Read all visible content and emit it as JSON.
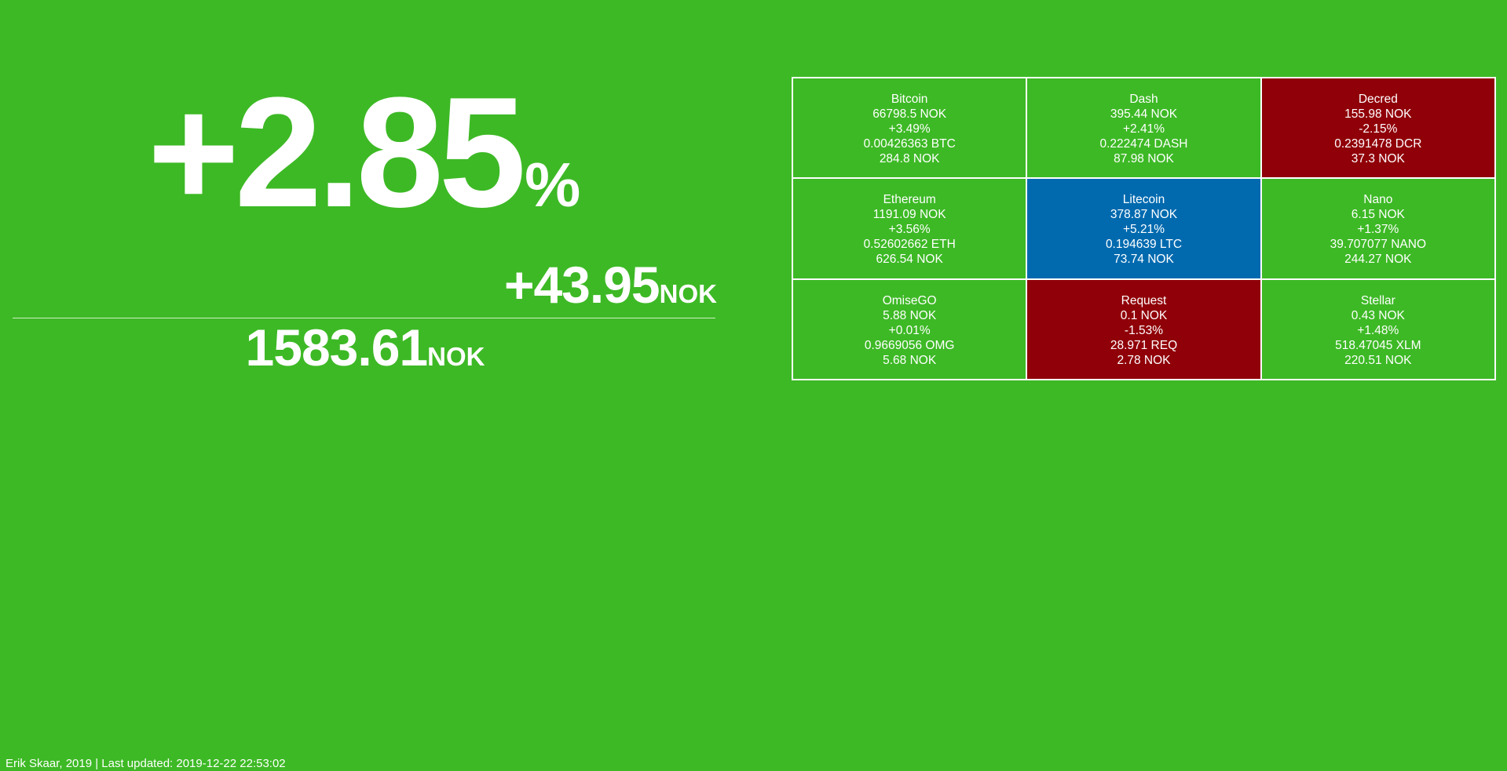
{
  "colors": {
    "background": "#3db925",
    "up": "#3db925",
    "down": "#900008",
    "best": "#016aaf"
  },
  "summary": {
    "percent_value": "+2.85",
    "percent_unit": "%",
    "change_value": "+43.95",
    "change_unit": "NOK",
    "total_value": "1583.61",
    "total_unit": "NOK"
  },
  "coins": [
    {
      "name": "Bitcoin",
      "price": "66798.5 NOK",
      "change": "+3.49%",
      "holding": "0.00426363 BTC",
      "value": "284.8 NOK",
      "status": "up"
    },
    {
      "name": "Dash",
      "price": "395.44 NOK",
      "change": "+2.41%",
      "holding": "0.222474 DASH",
      "value": "87.98 NOK",
      "status": "up"
    },
    {
      "name": "Decred",
      "price": "155.98 NOK",
      "change": "-2.15%",
      "holding": "0.2391478 DCR",
      "value": "37.3 NOK",
      "status": "down"
    },
    {
      "name": "Ethereum",
      "price": "1191.09 NOK",
      "change": "+3.56%",
      "holding": "0.52602662 ETH",
      "value": "626.54 NOK",
      "status": "up"
    },
    {
      "name": "Litecoin",
      "price": "378.87 NOK",
      "change": "+5.21%",
      "holding": "0.194639 LTC",
      "value": "73.74 NOK",
      "status": "best"
    },
    {
      "name": "Nano",
      "price": "6.15 NOK",
      "change": "+1.37%",
      "holding": "39.707077 NANO",
      "value": "244.27 NOK",
      "status": "up"
    },
    {
      "name": "OmiseGO",
      "price": "5.88 NOK",
      "change": "+0.01%",
      "holding": "0.9669056 OMG",
      "value": "5.68 NOK",
      "status": "up"
    },
    {
      "name": "Request",
      "price": "0.1 NOK",
      "change": "-1.53%",
      "holding": "28.971 REQ",
      "value": "2.78 NOK",
      "status": "down"
    },
    {
      "name": "Stellar",
      "price": "0.43 NOK",
      "change": "+1.48%",
      "holding": "518.47045 XLM",
      "value": "220.51 NOK",
      "status": "up"
    }
  ],
  "footer": {
    "text": "Erik Skaar, 2019 | Last updated: 2019-12-22 22:53:02"
  }
}
